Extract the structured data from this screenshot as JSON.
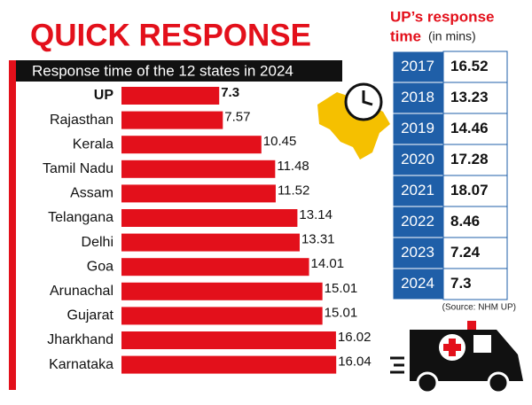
{
  "chart_data": {
    "type": "bar",
    "orientation": "horizontal",
    "title": "QUICK RESPONSE",
    "subtitle": "Response time of the 12 states in 2024",
    "categories": [
      "UP",
      "Rajasthan",
      "Kerala",
      "Tamil Nadu",
      "Assam",
      "Telangana",
      "Delhi",
      "Goa",
      "Arunachal",
      "Gujarat",
      "Jharkhand",
      "Karnataka"
    ],
    "values": [
      7.3,
      7.57,
      10.45,
      11.48,
      11.52,
      13.14,
      13.31,
      14.01,
      15.01,
      15.01,
      16.02,
      16.04
    ],
    "color": "#e3101b"
  },
  "table": {
    "title": "UP’s response",
    "title_line2": "time",
    "unit": "(in mins)",
    "rows": [
      [
        2017,
        16.52
      ],
      [
        2018,
        13.23
      ],
      [
        2019,
        14.46
      ],
      [
        2020,
        17.28
      ],
      [
        2021,
        18.07
      ],
      [
        2022,
        8.46
      ],
      [
        2023,
        7.24
      ],
      [
        2024,
        7.3
      ]
    ],
    "source": "(Source: NHM UP)"
  }
}
